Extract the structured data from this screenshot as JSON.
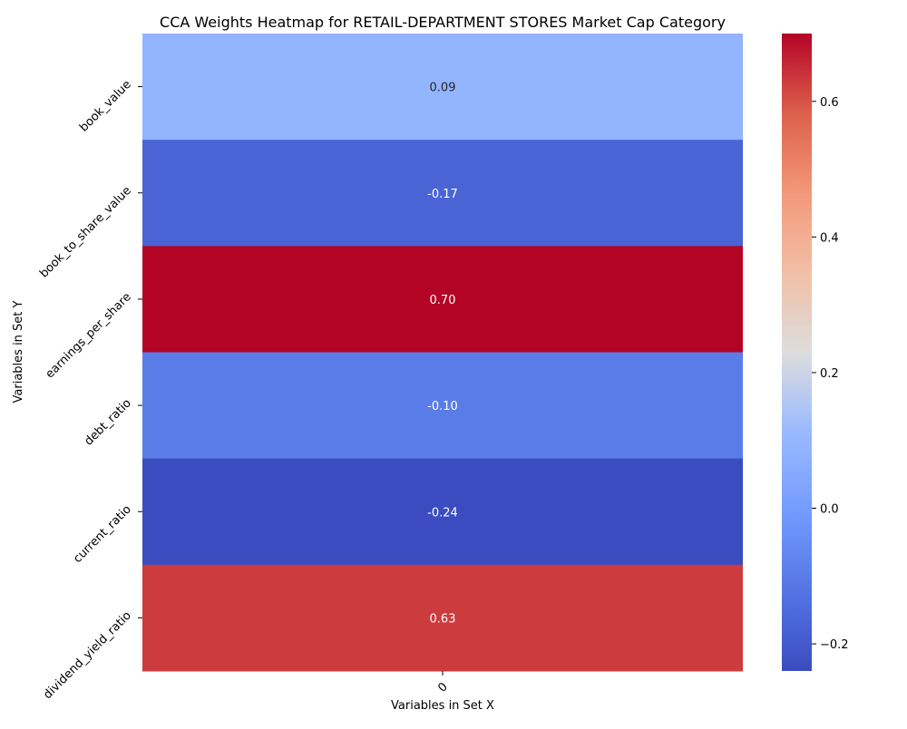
{
  "chart_data": {
    "type": "heatmap",
    "title": "CCA Weights Heatmap for RETAIL-DEPARTMENT STORES Market Cap Category",
    "xlabel": "Variables in Set X",
    "ylabel": "Variables in Set Y",
    "x_categories": [
      "0"
    ],
    "y_categories": [
      "book_value",
      "book_to_share_value",
      "earnings_per_share",
      "debt_ratio",
      "current_ratio",
      "dividend_yield_ratio"
    ],
    "values": [
      [
        0.09
      ],
      [
        -0.17
      ],
      [
        0.7
      ],
      [
        -0.1
      ],
      [
        -0.24
      ],
      [
        0.63
      ]
    ],
    "value_labels": [
      "0.09",
      "-0.17",
      "0.70",
      "-0.10",
      "-0.24",
      "0.63"
    ],
    "colormap": "coolwarm",
    "colorbar": {
      "range": [
        -0.24,
        0.7
      ],
      "ticks": [
        -0.2,
        0.0,
        0.2,
        0.4,
        0.6
      ],
      "tick_labels": [
        "−0.2",
        "0.0",
        "0.2",
        "0.4",
        "0.6"
      ]
    },
    "grid": false
  }
}
